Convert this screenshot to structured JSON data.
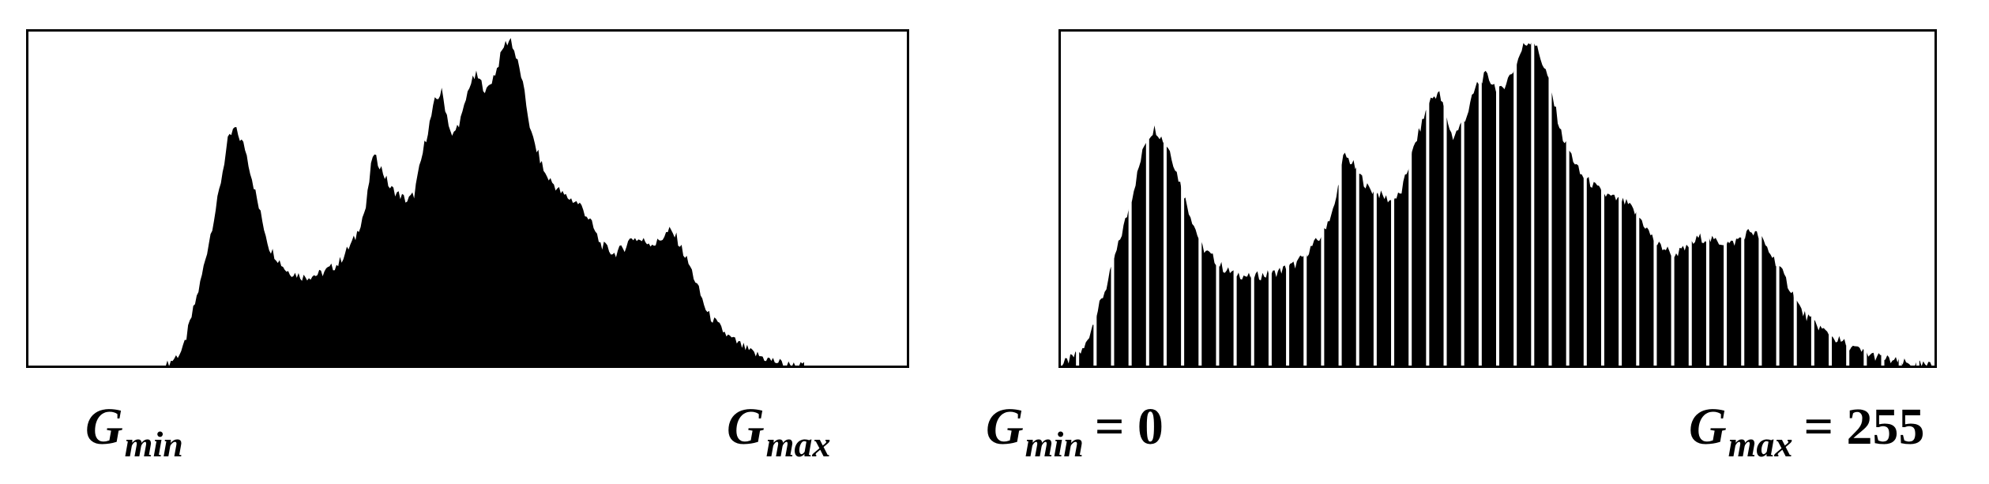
{
  "chart_data": [
    {
      "type": "area",
      "description_role": "original histogram",
      "x_domain": [
        0,
        255
      ],
      "y_domain": [
        0,
        1
      ],
      "gmin_x": 40,
      "gmax_x": 225,
      "envelope": [
        [
          40,
          0.0
        ],
        [
          45,
          0.05
        ],
        [
          50,
          0.25
        ],
        [
          55,
          0.5
        ],
        [
          58,
          0.68
        ],
        [
          60,
          0.72
        ],
        [
          63,
          0.66
        ],
        [
          67,
          0.48
        ],
        [
          70,
          0.36
        ],
        [
          75,
          0.29
        ],
        [
          80,
          0.27
        ],
        [
          85,
          0.28
        ],
        [
          90,
          0.31
        ],
        [
          95,
          0.39
        ],
        [
          98,
          0.48
        ],
        [
          100,
          0.64
        ],
        [
          102,
          0.61
        ],
        [
          105,
          0.54
        ],
        [
          110,
          0.5
        ],
        [
          112,
          0.52
        ],
        [
          115,
          0.67
        ],
        [
          118,
          0.8
        ],
        [
          120,
          0.83
        ],
        [
          123,
          0.69
        ],
        [
          126,
          0.76
        ],
        [
          128,
          0.85
        ],
        [
          130,
          0.88
        ],
        [
          133,
          0.83
        ],
        [
          136,
          0.9
        ],
        [
          138,
          0.97
        ],
        [
          140,
          0.99
        ],
        [
          143,
          0.88
        ],
        [
          146,
          0.7
        ],
        [
          150,
          0.58
        ],
        [
          155,
          0.52
        ],
        [
          160,
          0.49
        ],
        [
          163,
          0.44
        ],
        [
          166,
          0.37
        ],
        [
          170,
          0.34
        ],
        [
          173,
          0.36
        ],
        [
          175,
          0.39
        ],
        [
          178,
          0.38
        ],
        [
          182,
          0.37
        ],
        [
          186,
          0.41
        ],
        [
          188,
          0.39
        ],
        [
          192,
          0.3
        ],
        [
          197,
          0.16
        ],
        [
          203,
          0.09
        ],
        [
          210,
          0.04
        ],
        [
          215,
          0.02
        ],
        [
          220,
          0.005
        ],
        [
          225,
          0.0
        ]
      ],
      "labels": {
        "min": "G",
        "min_sub": "min",
        "max": "G",
        "max_sub": "max"
      }
    },
    {
      "type": "bar",
      "description_role": "stretched histogram",
      "x_domain": [
        0,
        255
      ],
      "y_domain": [
        0,
        1
      ],
      "gmin_x": 0,
      "gmax_x": 255,
      "gap_count": 49,
      "labels": {
        "min": "G",
        "min_sub": "min",
        "min_value": "= 0",
        "max": "G",
        "max_sub": "max",
        "max_value": "= 255"
      }
    }
  ],
  "colors": {
    "fill": "#000000",
    "frame": "#000000",
    "background": "#ffffff"
  }
}
